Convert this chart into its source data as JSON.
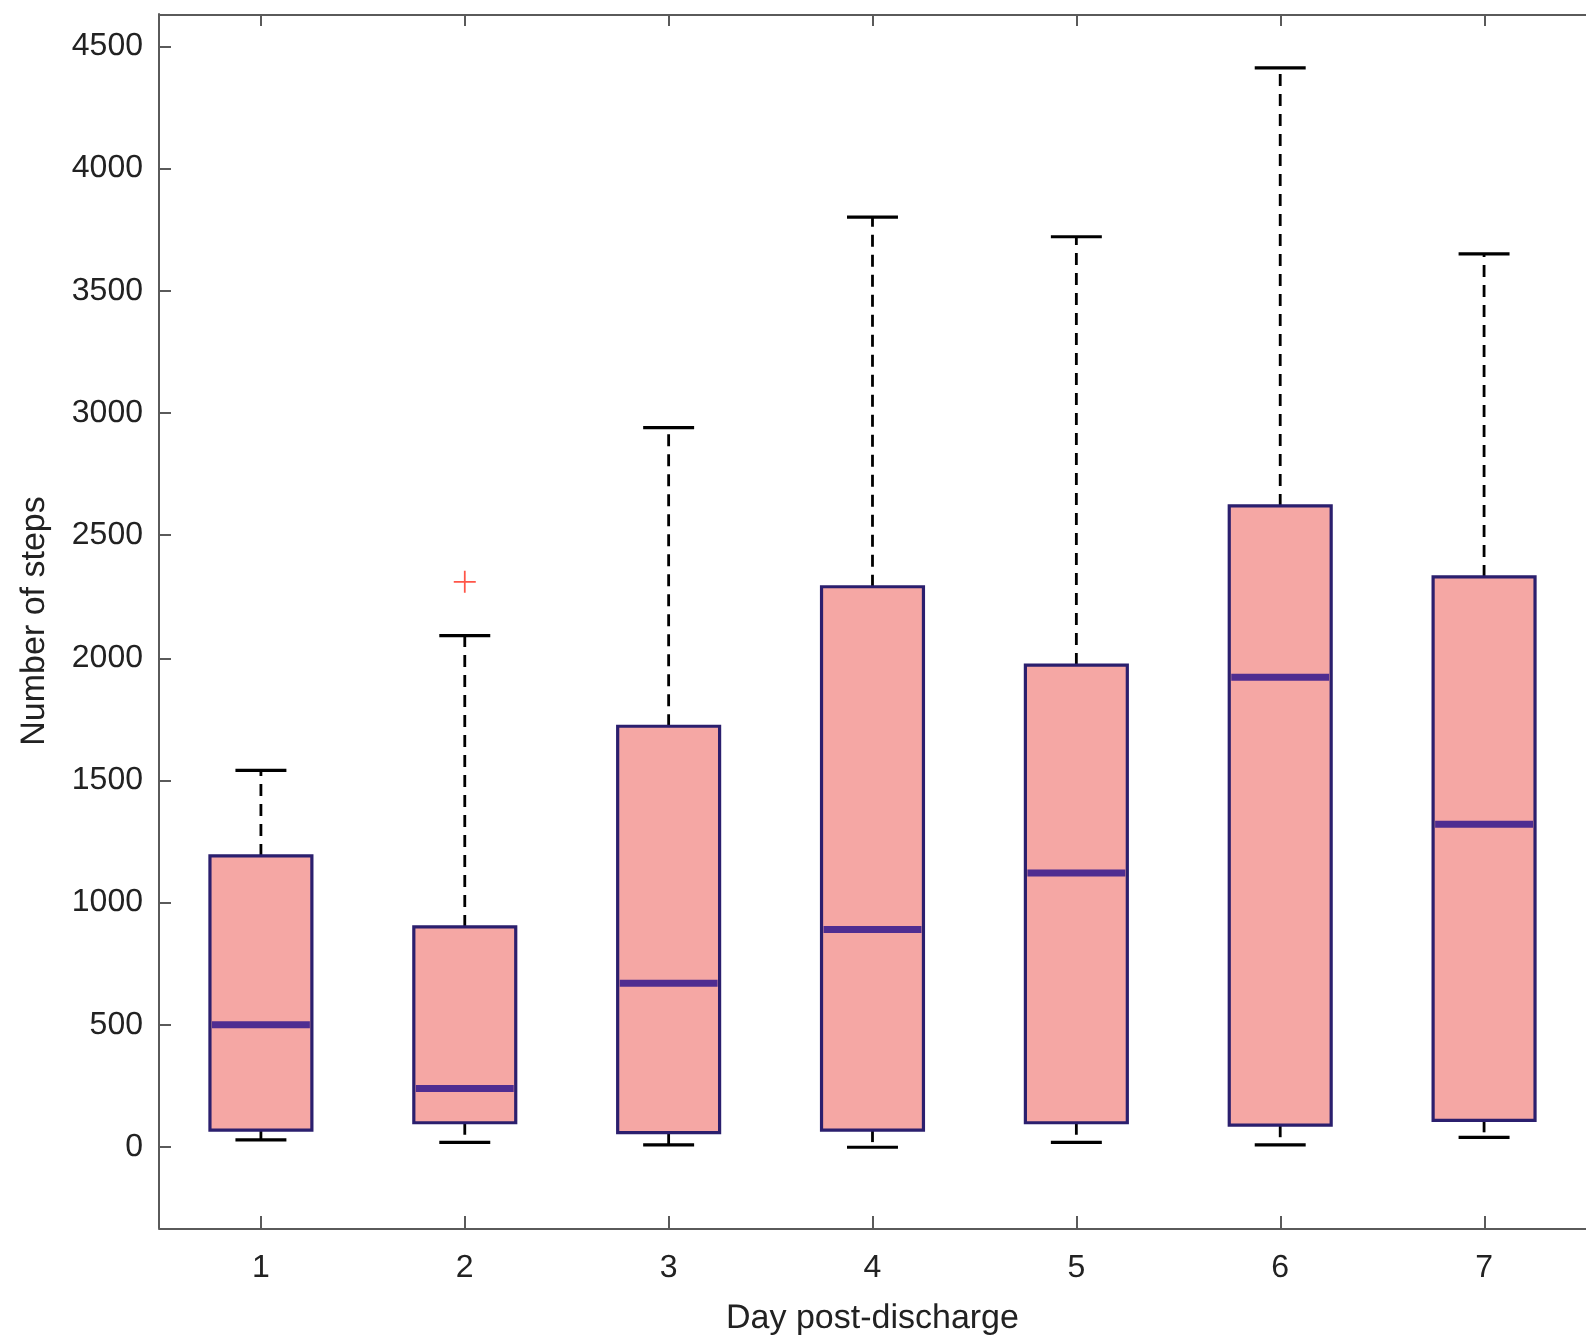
{
  "chart_data": {
    "type": "box",
    "xlabel": "Day post-discharge",
    "ylabel": "Number of steps",
    "categories": [
      "1",
      "2",
      "3",
      "4",
      "5",
      "6",
      "7"
    ],
    "series": [
      {
        "color": "#f5a7a4",
        "boxes": [
          {
            "low": 30,
            "q1": 70,
            "median": 500,
            "q3": 1190,
            "high": 1540
          },
          {
            "low": 20,
            "q1": 100,
            "median": 240,
            "q3": 900,
            "high": 2090,
            "outliers": [
              2310
            ]
          },
          {
            "low": 10,
            "q1": 60,
            "median": 670,
            "q3": 1720,
            "high": 2940
          },
          {
            "low": 0,
            "q1": 70,
            "median": 890,
            "q3": 2290,
            "high": 3800
          },
          {
            "low": 20,
            "q1": 100,
            "median": 1120,
            "q3": 1970,
            "high": 3720
          },
          {
            "low": 10,
            "q1": 90,
            "median": 1920,
            "q3": 2620,
            "high": 4410
          },
          {
            "low": 40,
            "q1": 110,
            "median": 1320,
            "q3": 2330,
            "high": 3650
          }
        ]
      }
    ],
    "ylim": [
      -330,
      4630
    ],
    "yticks": [
      0,
      500,
      1000,
      1500,
      2000,
      2500,
      3000,
      3500,
      4000,
      4500
    ]
  }
}
